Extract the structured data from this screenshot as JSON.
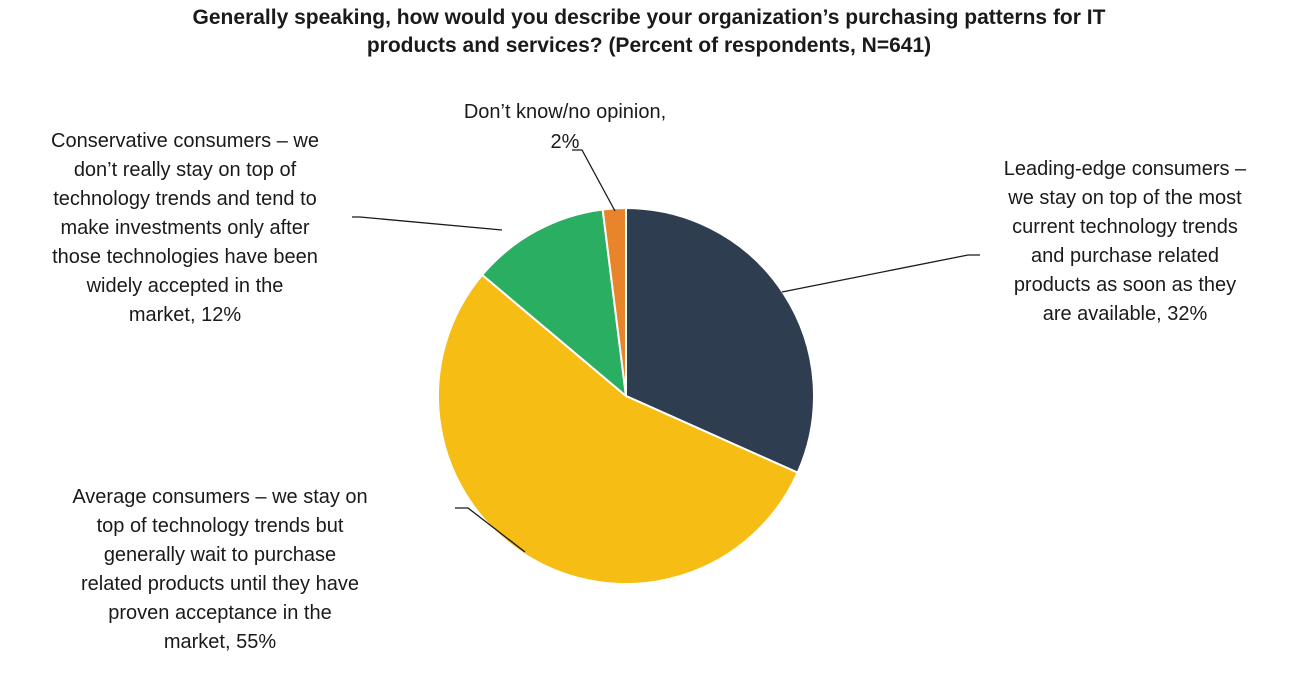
{
  "chart_data": {
    "type": "pie",
    "title": "Generally speaking, how would you describe your organization’s purchasing patterns for IT products and services? (Percent of respondents, N=641)",
    "title_lines": [
      "Generally speaking, how would you describe your organization’s purchasing patterns for IT",
      "products and services? (Percent of respondents, N=641)"
    ],
    "start_angle_deg": 0,
    "direction": "clockwise",
    "slices": [
      {
        "label": "Leading-edge consumers – we stay on top of the most current technology trends and purchase related products as soon as they are available",
        "value": 32,
        "color": "#2e3e50",
        "label_lines": [
          "Leading-edge consumers –",
          "we stay on top of the most",
          "current technology trends",
          "and purchase related",
          "products as soon as they",
          "are available, 32%"
        ]
      },
      {
        "label": "Average consumers – we stay on top of technology trends but generally wait to purchase related products until they have proven acceptance in the market",
        "value": 55,
        "color": "#f6bd14",
        "label_lines": [
          "Average consumers – we stay on",
          "top of technology trends but",
          "generally wait to purchase",
          "related products until they have",
          "proven acceptance in the",
          "market, 55%"
        ]
      },
      {
        "label": "Conservative consumers – we don’t really stay on top of technology trends and tend to make investments only after those technologies have been widely accepted in the market",
        "value": 12,
        "color": "#2aae62",
        "label_lines": [
          "Conservative consumers – we",
          "don’t really stay on top of",
          "technology trends and tend to",
          "make investments only after",
          "those technologies have been",
          "widely accepted in the",
          "market, 12%"
        ]
      },
      {
        "label": "Don’t know/no opinion",
        "value": 2,
        "color": "#e8842a",
        "label_lines": [
          "Don’t know/no opinion,",
          "2%"
        ]
      }
    ]
  }
}
